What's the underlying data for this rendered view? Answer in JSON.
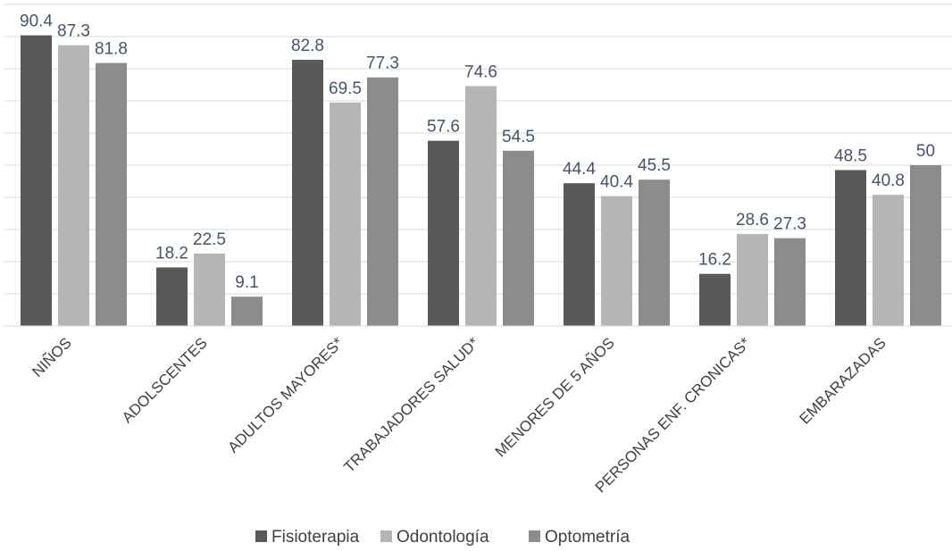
{
  "chart_data": {
    "type": "bar",
    "title": "",
    "xlabel": "",
    "ylabel": "",
    "ylim": [
      0,
      100
    ],
    "grid": true,
    "legend_position": "bottom",
    "categories": [
      "NIÑOS",
      "ADOLSCENTES",
      "ADULTOS MAYORES*",
      "TRABAJADORES SALUD*",
      "MENORES  DE 5 AÑOS",
      "PERSONAS ENF. CRONICAS*",
      "EMBARAZADAS"
    ],
    "series": [
      {
        "name": "Fisioterapia",
        "color": "#595959",
        "values": [
          90.4,
          18.2,
          82.8,
          57.6,
          44.4,
          16.2,
          48.5
        ]
      },
      {
        "name": "Odontología",
        "color": "#b5b5b5",
        "values": [
          87.3,
          22.5,
          69.5,
          74.6,
          40.4,
          28.6,
          40.8
        ]
      },
      {
        "name": "Optometría",
        "color": "#8c8c8c",
        "values": [
          81.8,
          9.1,
          77.3,
          54.5,
          45.5,
          27.3,
          50
        ]
      }
    ]
  }
}
